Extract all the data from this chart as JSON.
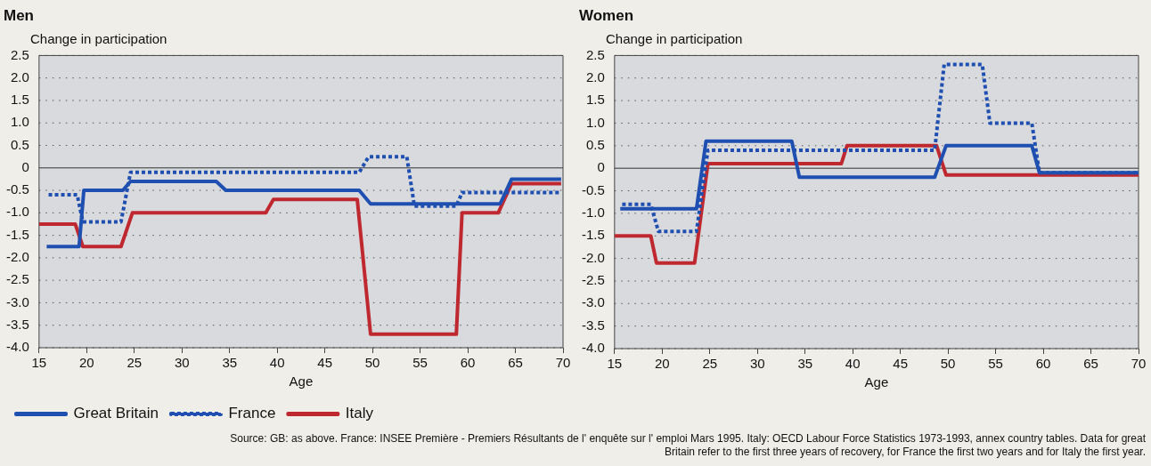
{
  "chart_data": [
    {
      "type": "line",
      "title": "Men",
      "ylabel": "Change in participation",
      "xlabel": "Age",
      "xlim": [
        15,
        70
      ],
      "xticks": [
        15,
        20,
        25,
        30,
        35,
        40,
        45,
        50,
        55,
        60,
        65,
        70
      ],
      "ylim": [
        -4,
        2.5
      ],
      "yticks": [
        2.5,
        {
          "value": 2,
          "label": "2.0"
        },
        1.5,
        {
          "value": 1,
          "label": "1.0"
        },
        0.5,
        0,
        -0.5,
        {
          "value": -1,
          "label": "-1.0"
        },
        -1.5,
        {
          "value": -2,
          "label": "-2.0"
        },
        -2.5,
        {
          "value": -3,
          "label": "-3.0"
        },
        -3.5,
        {
          "value": -4,
          "label": "-4.0"
        }
      ],
      "grid": "y",
      "legend": "bottom",
      "series": [
        {
          "name": "Great Britain",
          "color": "#1f4fb0",
          "line_style": "solid",
          "x": [
            15.8,
            19.2,
            19.7,
            23.8,
            24.6,
            33.6,
            34.6,
            48.6,
            49.8,
            63.4,
            64.6,
            69.8
          ],
          "values": [
            -1.75,
            -1.75,
            -0.5,
            -0.5,
            -0.3,
            -0.3,
            -0.5,
            -0.5,
            -0.8,
            -0.8,
            -0.25,
            -0.25
          ]
        },
        {
          "name": "France",
          "color": "#1f4fb0",
          "line_style": "dotted",
          "x": [
            16,
            19,
            19.6,
            23.6,
            24.6,
            48.6,
            49.6,
            53.6,
            54.4,
            58.8,
            59.4,
            69.8
          ],
          "values": [
            -0.6,
            -0.6,
            -1.2,
            -1.2,
            -0.1,
            -0.1,
            0.25,
            0.25,
            -0.85,
            -0.85,
            -0.55,
            -0.55
          ]
        },
        {
          "name": "Italy",
          "color": "#c0282f",
          "line_style": "solid",
          "x": [
            15,
            18.8,
            19.6,
            23.6,
            24.8,
            38.8,
            39.6,
            48.4,
            49.8,
            58.8,
            59.4,
            63.2,
            64.6,
            69.8
          ],
          "values": [
            -1.25,
            -1.25,
            -1.75,
            -1.75,
            -1,
            -1,
            -0.7,
            -0.7,
            -3.7,
            -3.7,
            -1,
            -1,
            -0.35,
            -0.35
          ]
        }
      ],
      "annotations": [
        "Source: GB: as above. France: INSEE Première - Premiers Résultants de l' enquête sur l' emploi Mars 1995. Italy: OECD Labour Force Statistics 1973-1993, annex country tables. Data for great Britain refer to the first three years of recovery, for France the first two years and for Italy the first year."
      ]
    },
    {
      "type": "line",
      "title": "Women",
      "ylabel": "Change in participation",
      "xlabel": "Age",
      "xlim": [
        15,
        70
      ],
      "xticks": [
        15,
        20,
        25,
        30,
        35,
        40,
        45,
        50,
        55,
        60,
        65,
        70
      ],
      "ylim": [
        -4,
        2.5
      ],
      "yticks": [
        2.5,
        {
          "value": 2,
          "label": "2.0"
        },
        1.5,
        {
          "value": 1,
          "label": "1.0"
        },
        0.5,
        0,
        -0.5,
        {
          "value": -1,
          "label": "-1.0"
        },
        -1.5,
        {
          "value": -2,
          "label": "-2.0"
        },
        -2.5,
        {
          "value": -3,
          "label": "-3.0"
        },
        -3.5,
        {
          "value": -4,
          "label": "-4.0"
        }
      ],
      "grid": "y",
      "series": [
        {
          "color": "#1f4fb0",
          "line_style": "solid",
          "x": [
            15.6,
            23.6,
            24.6,
            33.6,
            34.4,
            48.6,
            49.8,
            58.8,
            59.6,
            70
          ],
          "values": [
            -0.9,
            -0.9,
            0.6,
            0.6,
            -0.2,
            -0.2,
            0.5,
            0.5,
            -0.1,
            -0.1
          ]
        },
        {
          "color": "#1f4fb0",
          "line_style": "dotted",
          "x": [
            15.8,
            18.8,
            19.6,
            23.6,
            24.8,
            48.6,
            49.6,
            53.6,
            54.4,
            58.8,
            59.6,
            70
          ],
          "values": [
            -0.8,
            -0.8,
            -1.4,
            -1.4,
            0.4,
            0.4,
            2.3,
            2.3,
            1,
            1,
            -0.1,
            -0.1
          ]
        },
        {
          "color": "#c0282f",
          "line_style": "solid",
          "x": [
            15,
            18.8,
            19.4,
            23.4,
            24.8,
            38.8,
            39.4,
            48.8,
            49.8,
            70
          ],
          "values": [
            -1.5,
            -1.5,
            -2.1,
            -2.1,
            0.1,
            0.1,
            0.5,
            0.5,
            -0.15,
            -0.15
          ]
        }
      ]
    }
  ]
}
